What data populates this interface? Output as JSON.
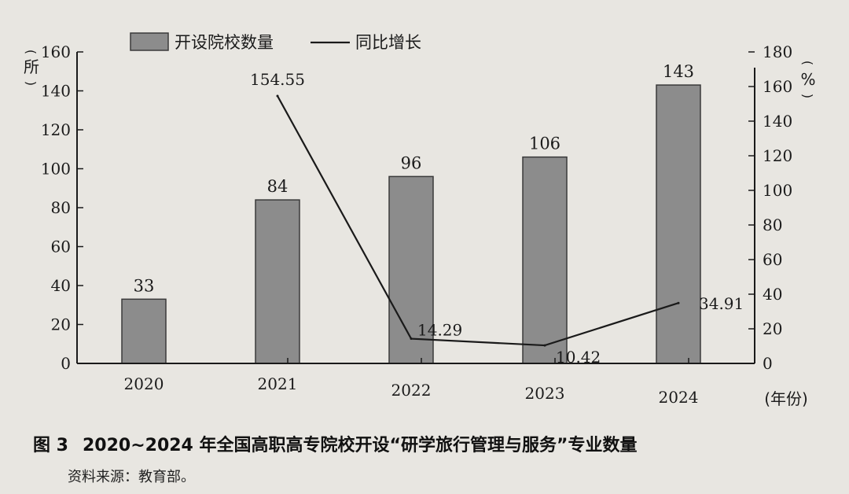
{
  "figure": {
    "number": "图 3",
    "caption": "2020~2024 年全国高职高专院校开设“研学旅行管理与服务”专业数量",
    "source": "资料来源：教育部。"
  },
  "chart_data": {
    "type": "bar+line",
    "categories": [
      "2020",
      "2021",
      "2022",
      "2023",
      "2024"
    ],
    "series": [
      {
        "name": "开设院校数量",
        "type": "bar",
        "axis": "left",
        "values": [
          33,
          84,
          96,
          106,
          143
        ],
        "labels": [
          "33",
          "84",
          "96",
          "106",
          "143"
        ],
        "color": "#8c8c8c"
      },
      {
        "name": "同比增长",
        "type": "line",
        "axis": "right",
        "values": [
          null,
          154.55,
          14.29,
          10.42,
          34.91
        ],
        "labels": [
          "",
          "154.55",
          "14.29",
          "10.42",
          "34.91"
        ],
        "color": "#1a1a1a"
      }
    ],
    "y_left": {
      "unit": "(所)",
      "min": 0,
      "max": 160,
      "ticks": [
        0,
        20,
        40,
        60,
        80,
        100,
        120,
        140,
        160
      ]
    },
    "y_right": {
      "unit": "(%)",
      "min": 0,
      "max": 180,
      "ticks": [
        0,
        20,
        40,
        60,
        80,
        100,
        120,
        140,
        160,
        180
      ]
    },
    "x_unit": "(年份)",
    "legend_position": "top-center",
    "grid": false
  }
}
